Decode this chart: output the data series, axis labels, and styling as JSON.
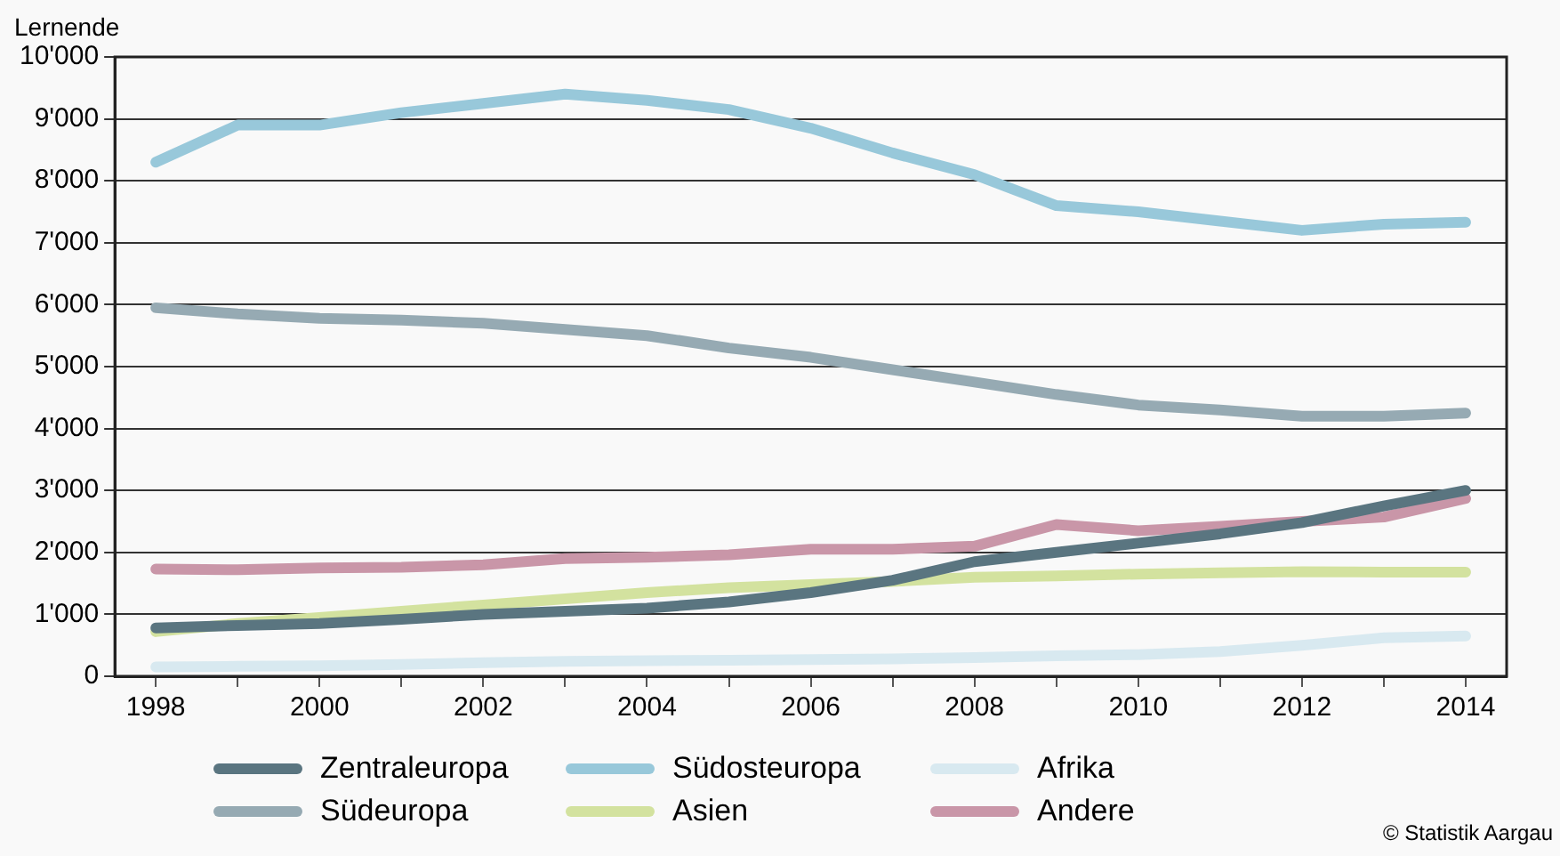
{
  "chart_data": {
    "type": "line",
    "ylabel": "Lernende",
    "x": [
      1998,
      1999,
      2000,
      2001,
      2002,
      2003,
      2004,
      2005,
      2006,
      2007,
      2008,
      2009,
      2010,
      2011,
      2012,
      2013,
      2014
    ],
    "xlim": [
      1997.5,
      2014.5
    ],
    "xticks": [
      1998,
      {
        "value": 1999,
        "label": null
      },
      2000,
      {
        "value": 2001,
        "label": null
      },
      2002,
      {
        "value": 2003,
        "label": null
      },
      2004,
      {
        "value": 2005,
        "label": null
      },
      2006,
      {
        "value": 2007,
        "label": null
      },
      2008,
      {
        "value": 2009,
        "label": null
      },
      2010,
      {
        "value": 2011,
        "label": null
      },
      2012,
      {
        "value": 2013,
        "label": null
      },
      2014
    ],
    "ylim": [
      0,
      10000
    ],
    "yticks": [
      0,
      {
        "value": 1000,
        "label": "1'000"
      },
      {
        "value": 2000,
        "label": "2'000"
      },
      {
        "value": 3000,
        "label": "3'000"
      },
      {
        "value": 4000,
        "label": "4'000"
      },
      {
        "value": 5000,
        "label": "5'000"
      },
      {
        "value": 6000,
        "label": "6'000"
      },
      {
        "value": 7000,
        "label": "7'000"
      },
      {
        "value": 8000,
        "label": "8'000"
      },
      {
        "value": 9000,
        "label": "9'000"
      },
      {
        "value": 10000,
        "label": "10'000"
      }
    ],
    "grid": "y",
    "legend": "bottom",
    "marker": "none",
    "line_style": "solid",
    "series": [
      {
        "name": "Zentraleuropa",
        "color": "#5a7580",
        "values": [
          780,
          820,
          850,
          920,
          1000,
          1050,
          1100,
          1200,
          1350,
          1550,
          1850,
          2000,
          2150,
          2300,
          2480,
          2750,
          3000
        ]
      },
      {
        "name": "Südosteuropa",
        "color": "#98c8da",
        "values": [
          8300,
          8900,
          8900,
          9100,
          9250,
          9400,
          9300,
          9150,
          8850,
          8450,
          8100,
          7600,
          7500,
          7350,
          7200,
          7300,
          7330
        ]
      },
      {
        "name": "Afrika",
        "color": "#d8e9f0",
        "values": [
          150,
          160,
          170,
          190,
          220,
          240,
          250,
          260,
          270,
          280,
          300,
          330,
          350,
          400,
          500,
          620,
          650
        ]
      },
      {
        "name": "Südeuropa",
        "color": "#96aab3",
        "values": [
          5950,
          5850,
          5780,
          5750,
          5700,
          5600,
          5500,
          5300,
          5150,
          4950,
          4750,
          4550,
          4380,
          4300,
          4200,
          4200,
          4250
        ]
      },
      {
        "name": "Asien",
        "color": "#d3e29f",
        "values": [
          720,
          850,
          950,
          1050,
          1150,
          1250,
          1350,
          1430,
          1480,
          1530,
          1600,
          1620,
          1650,
          1670,
          1690,
          1680,
          1680
        ]
      },
      {
        "name": "Andere",
        "color": "#c996a8",
        "values": [
          1730,
          1720,
          1750,
          1760,
          1800,
          1900,
          1920,
          1960,
          2050,
          2050,
          2100,
          2450,
          2350,
          2420,
          2500,
          2570,
          2870
        ]
      }
    ],
    "annotations": [
      "© Statistik Aargau"
    ]
  }
}
